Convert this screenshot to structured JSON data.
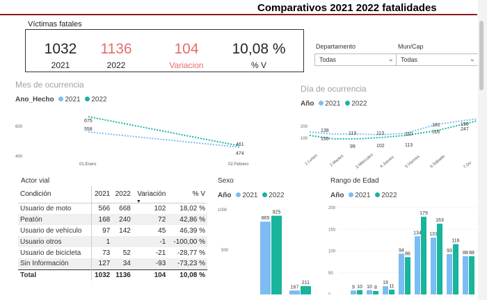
{
  "header": {
    "title": "Comparativos 2021 2022 fatalidades"
  },
  "kpi_card": {
    "label": "Víctimas fatales",
    "items": [
      {
        "value": "1032",
        "label": "2021"
      },
      {
        "value": "1136",
        "label": "2022"
      },
      {
        "value": "104",
        "label": "Variacion"
      },
      {
        "value": "10,08 %",
        "label": "% V"
      }
    ]
  },
  "slicers": [
    {
      "label": "Departamento",
      "value": "Todas"
    },
    {
      "label": "Mun/Cap",
      "value": "Todas"
    }
  ],
  "legend": {
    "prefix": "Ano_Hecho",
    "prefix_short": "Año",
    "y2021": "2021",
    "y2022": "2022"
  },
  "colors": {
    "c2021": "#7cbcf2",
    "c2022": "#18b49b",
    "red": "#e46c6c"
  },
  "mes": {
    "title": "Mes de ocurrencia",
    "chart_data": {
      "type": "line",
      "categories": [
        "01.Enero",
        "02.Febrero"
      ],
      "series": [
        {
          "name": "2021",
          "values": [
            558,
            461
          ]
        },
        {
          "name": "2022",
          "values": [
            675,
            474
          ]
        }
      ],
      "yticks": [
        "600",
        "400"
      ]
    }
  },
  "dia": {
    "title": "Día de ocurrencia",
    "chart_data": {
      "type": "line",
      "categories": [
        "1.Lunes",
        "2.Martes",
        "3.Miércoles",
        "4.Jueves",
        "5.Viernes",
        "6.Sábado",
        "7.Do"
      ],
      "series": [
        {
          "name": "2021",
          "values": [
            138,
            113,
            113,
            110,
            116,
            190,
            null
          ]
        },
        {
          "name": "2022",
          "values": [
            150,
            99,
            102,
            113,
            181,
            247,
            null
          ]
        }
      ],
      "yticks": [
        "200",
        "100"
      ]
    }
  },
  "actor": {
    "title": "Actor vial",
    "columns": [
      "Condición",
      "2021",
      "2022",
      "Variación",
      "% V"
    ],
    "rows": [
      [
        "Usuario de moto",
        "566",
        "668",
        "102",
        "18,02 %"
      ],
      [
        "Peatón",
        "168",
        "240",
        "72",
        "42,86 %"
      ],
      [
        "Usuario de vehículo",
        "97",
        "142",
        "45",
        "46,39 %"
      ],
      [
        "Usuario otros",
        "1",
        "",
        "-1",
        "-100,00 %"
      ],
      [
        "Usuario de bicicleta",
        "73",
        "52",
        "-21",
        "-28,77 %"
      ],
      [
        "Sin Información",
        "127",
        "34",
        "-93",
        "-73,23 %"
      ]
    ],
    "total": [
      "Total",
      "1032",
      "1136",
      "104",
      "10,08 %"
    ]
  },
  "sexo": {
    "title": "Sexo",
    "chart_data": {
      "type": "bar",
      "categories": [
        "",
        ""
      ],
      "series": [
        {
          "name": "2021",
          "values": [
            865,
            167
          ]
        },
        {
          "name": "2022",
          "values": [
            925,
            211
          ]
        }
      ],
      "yticks": [
        "1000",
        "500"
      ],
      "ylim": [
        0,
        1000
      ]
    }
  },
  "edad": {
    "title": "Rango de Edad",
    "chart_data": {
      "type": "bar",
      "categories": [
        "",
        "",
        "",
        "",
        "",
        "",
        "",
        "",
        ""
      ],
      "series": [
        {
          "name": "2021",
          "values": [
            9,
            10,
            19,
            94,
            134,
            131,
            93,
            88,
            77
          ]
        },
        {
          "name": "2022",
          "values": [
            10,
            8,
            11,
            86,
            179,
            163,
            116,
            88,
            0
          ]
        }
      ],
      "yticks": [
        "200",
        "150",
        "100",
        "50",
        "0"
      ],
      "ylim": [
        0,
        200
      ]
    }
  }
}
